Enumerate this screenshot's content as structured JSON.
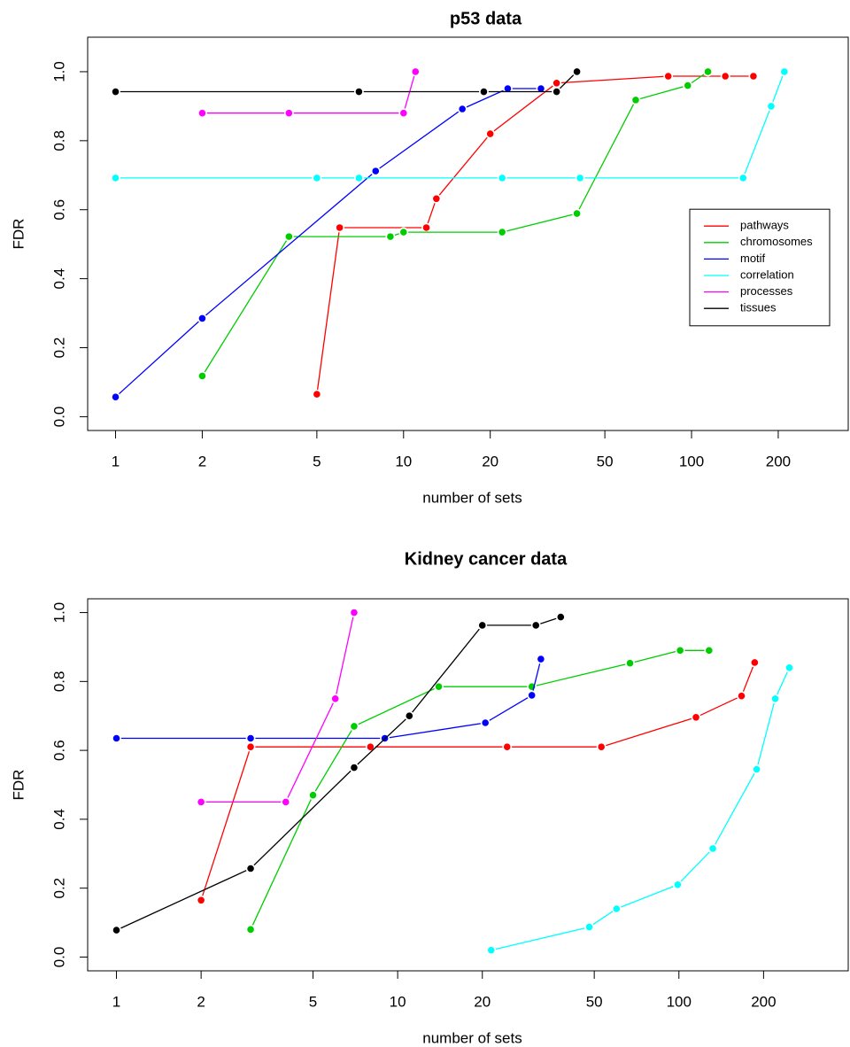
{
  "chart_data": [
    {
      "type": "line",
      "title": "p53 data",
      "x_label": "number of sets",
      "y_label": "FDR",
      "log_x": true,
      "legend": "right",
      "xlim": [
        0.8,
        350
      ],
      "xticks": [
        1,
        2,
        5,
        10,
        20,
        50,
        100,
        200
      ],
      "ylim": [
        -0.04,
        1.1
      ],
      "yticks": [
        {
          "value": 0,
          "label": "0.0"
        },
        0.2,
        0.4,
        0.6,
        0.8,
        {
          "value": 1,
          "label": "1.0"
        }
      ],
      "series": [
        {
          "name": "pathways",
          "color": "#ff0000",
          "x": [
            5,
            6,
            12,
            13,
            20,
            34,
            83,
            131,
            164
          ],
          "values": [
            0.065,
            0.548,
            0.548,
            0.632,
            0.82,
            0.967,
            0.987,
            0.987,
            0.987
          ]
        },
        {
          "name": "chromosomes",
          "color": "#00cd00",
          "x": [
            2,
            4,
            9,
            10,
            22,
            40,
            64,
            97,
            114
          ],
          "values": [
            0.118,
            0.522,
            0.522,
            0.535,
            0.535,
            0.589,
            0.918,
            0.96,
            1.0
          ]
        },
        {
          "name": "motif",
          "color": "#0000ff",
          "x": [
            1,
            2,
            8,
            16,
            23,
            30
          ],
          "values": [
            0.057,
            0.285,
            0.712,
            0.892,
            0.951,
            0.951
          ]
        },
        {
          "name": "correlation",
          "color": "#00ffff",
          "x": [
            1,
            5,
            7,
            22,
            41,
            151,
            189,
            210
          ],
          "values": [
            0.692,
            0.692,
            0.692,
            0.692,
            0.692,
            0.692,
            0.9,
            1.0
          ]
        },
        {
          "name": "processes",
          "color": "#ff00ff",
          "x": [
            2,
            4,
            10,
            11
          ],
          "values": [
            0.88,
            0.88,
            0.88,
            1.0
          ]
        },
        {
          "name": "tissues",
          "color": "#000000",
          "x": [
            1,
            7,
            19,
            34,
            40
          ],
          "values": [
            0.942,
            0.942,
            0.942,
            0.942,
            1.0
          ]
        }
      ]
    },
    {
      "type": "line",
      "title": "Kidney cancer data",
      "x_label": "number of sets",
      "y_label": "FDR",
      "log_x": true,
      "xlim": [
        0.79,
        400
      ],
      "xticks": [
        1,
        2,
        5,
        10,
        20,
        50,
        100,
        200
      ],
      "ylim": [
        -0.04,
        1.04
      ],
      "yticks": [
        {
          "value": 0,
          "label": "0.0"
        },
        0.2,
        0.4,
        0.6,
        0.8,
        {
          "value": 1,
          "label": "1.0"
        }
      ],
      "series": [
        {
          "color": "#ff0000",
          "x": [
            2,
            3,
            8,
            24.5,
            53,
            115,
            167,
            186
          ],
          "values": [
            0.165,
            0.61,
            0.61,
            0.61,
            0.61,
            0.696,
            0.758,
            0.855
          ]
        },
        {
          "color": "#00cd00",
          "x": [
            3,
            5,
            7,
            14,
            30,
            67,
            101,
            128
          ],
          "values": [
            0.08,
            0.47,
            0.67,
            0.785,
            0.785,
            0.853,
            0.89,
            0.89
          ]
        },
        {
          "color": "#0000ff",
          "x": [
            1,
            3,
            9,
            20.5,
            30,
            32.3
          ],
          "values": [
            0.635,
            0.635,
            0.635,
            0.68,
            0.76,
            0.865
          ]
        },
        {
          "color": "#00ffff",
          "x": [
            21.5,
            48,
            60,
            99,
            132,
            189,
            220,
            247
          ],
          "values": [
            0.02,
            0.087,
            0.14,
            0.21,
            0.315,
            0.545,
            0.75,
            0.84
          ]
        },
        {
          "color": "#ff00ff",
          "x": [
            2,
            4,
            6,
            7
          ],
          "values": [
            0.45,
            0.45,
            0.75,
            1.0
          ]
        },
        {
          "color": "#000000",
          "x": [
            1,
            3,
            7,
            11,
            20,
            31,
            38
          ],
          "values": [
            0.078,
            0.257,
            0.55,
            0.7,
            0.963,
            0.963,
            0.987
          ]
        }
      ]
    }
  ]
}
